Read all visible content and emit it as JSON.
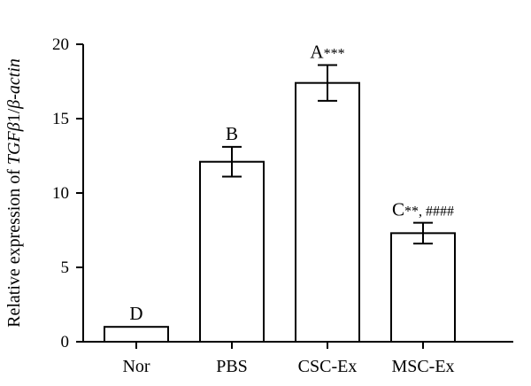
{
  "chart_data": {
    "type": "bar",
    "categories": [
      "Nor",
      "PBS",
      "CSC-Ex",
      "MSC-Ex"
    ],
    "values": [
      1.0,
      12.1,
      17.4,
      7.3
    ],
    "errors": [
      0.0,
      1.0,
      1.2,
      0.7
    ],
    "significance": [
      {
        "letter": "D",
        "stars": ""
      },
      {
        "letter": "B",
        "stars": ""
      },
      {
        "letter": "A",
        "stars": "***"
      },
      {
        "letter": "C",
        "stars": "**, ####"
      }
    ],
    "ylabel": {
      "prefix": "Relative expression of ",
      "gene": "TGF",
      "gene_greek": "β",
      "gene_suffix": "1/",
      "ref_greek": "β",
      "ref_suffix": "-actin"
    },
    "yticks": [
      0,
      5,
      10,
      15,
      20
    ],
    "ylim": [
      0,
      20
    ],
    "grid": false,
    "legend": "none",
    "bar_color": "#ffffff",
    "edge_color": "#000000"
  }
}
